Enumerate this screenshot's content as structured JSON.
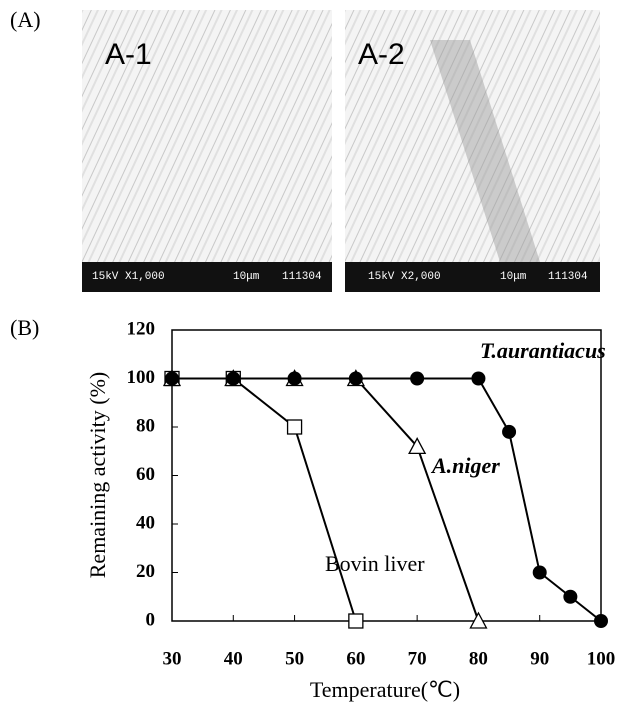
{
  "panel_a": {
    "label": "(A)",
    "images": [
      {
        "label": "A-1",
        "info": "15kV X1,000",
        "scale": "10μm",
        "code": "111304"
      },
      {
        "label": "A-2",
        "info": "15kV X2,000",
        "scale": "10μm",
        "code": "111304"
      }
    ]
  },
  "chart_data": {
    "type": "line",
    "panel_label": "(B)",
    "x_label": "Temperature(℃)",
    "y_label": "Remaining activity (%)",
    "xlim": [
      30,
      100
    ],
    "ylim": [
      0,
      120
    ],
    "xticks": [
      30,
      40,
      50,
      60,
      70,
      80,
      90,
      100
    ],
    "yticks": [
      0,
      20,
      40,
      60,
      80,
      100,
      120
    ],
    "series": [
      {
        "name": "T.aurantiacus",
        "color": "#000000",
        "marker": "circle",
        "x": [
          30,
          40,
          50,
          60,
          70,
          80,
          85,
          90,
          95,
          100
        ],
        "values": [
          100,
          100,
          100,
          100,
          100,
          100,
          78,
          20,
          10,
          0
        ]
      },
      {
        "name": "A.niger",
        "color": "#000000",
        "marker": "triangle",
        "x": [
          30,
          40,
          50,
          60,
          70,
          80
        ],
        "values": [
          100,
          100,
          100,
          100,
          72,
          0
        ]
      },
      {
        "name": "Bovin liver",
        "color": "#000000",
        "marker": "square",
        "x": [
          30,
          40,
          50,
          60
        ],
        "values": [
          100,
          100,
          80,
          0
        ]
      }
    ]
  }
}
